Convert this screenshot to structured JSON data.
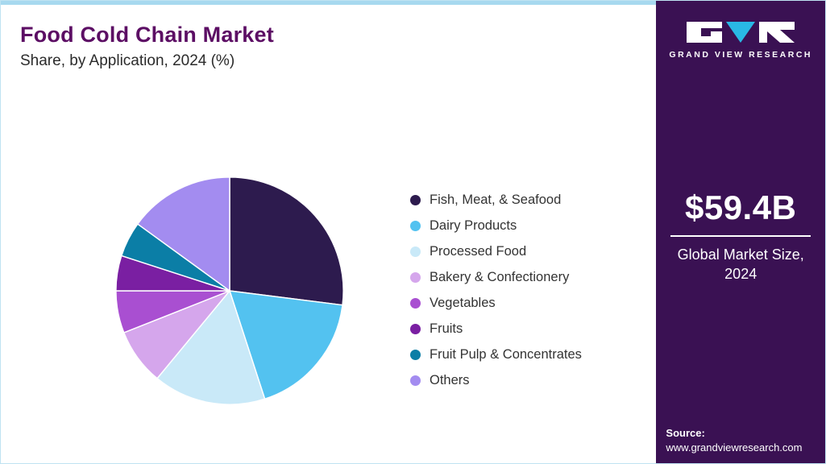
{
  "header": {
    "title": "Food Cold Chain Market",
    "subtitle": "Share, by Application, 2024 (%)"
  },
  "sidebar": {
    "brand": "GRAND VIEW RESEARCH",
    "market_size": "$59.4B",
    "market_size_label": "Global Market Size, 2024",
    "source_label": "Source:",
    "source_url": "www.grandviewresearch.com",
    "background_color": "#3a1153",
    "logo_triangle_color": "#29b8e5"
  },
  "chart_data": {
    "type": "pie",
    "title": "Food Cold Chain Market Share, by Application, 2024 (%)",
    "legend_position": "right",
    "start_angle_deg": 0,
    "direction": "clockwise",
    "segments": [
      {
        "label": "Fish, Meat, & Seafood",
        "value": 27,
        "color": "#2d1b4e"
      },
      {
        "label": "Dairy Products",
        "value": 18,
        "color": "#53c2f0"
      },
      {
        "label": "Processed Food",
        "value": 16,
        "color": "#c9e9f8"
      },
      {
        "label": "Bakery & Confectionery",
        "value": 8,
        "color": "#d5a6ec"
      },
      {
        "label": "Vegetables",
        "value": 6,
        "color": "#a94fd1"
      },
      {
        "label": "Fruits",
        "value": 5,
        "color": "#7a1fa2"
      },
      {
        "label": "Fruit Pulp & Concentrates",
        "value": 5,
        "color": "#0b7ea6"
      },
      {
        "label": "Others",
        "value": 15,
        "color": "#a38cf0"
      }
    ]
  }
}
